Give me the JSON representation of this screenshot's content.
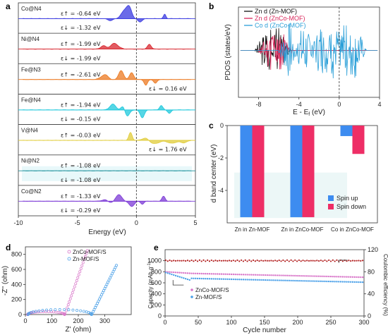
{
  "colors": {
    "Co@N4": "#3a3ae0",
    "Ni@N4": "#d8262e",
    "Fe@N3": "#ec7a22",
    "Fe@N4": "#1ec8dc",
    "V@N4": "#e0cc3a",
    "Ni@N2": "#1b8f9a",
    "Co@N2": "#7c3ad6",
    "zn_mof": "#111111",
    "znco_mof_zn": "#d9265a",
    "znco_mof_co": "#2a9fd8",
    "spin_up": "#3d8cf0",
    "spin_down": "#ee2e66",
    "znco_circle": "#d874c8",
    "zn_circle": "#4aa0e8",
    "ce_line": "#b22020"
  },
  "chart_data": [
    {
      "panel": "a",
      "type": "area",
      "xlabel": "Energy (eV)",
      "xlim": [
        -10,
        5
      ],
      "xticks": [
        "-10",
        "-5",
        "0",
        "5"
      ],
      "rows": [
        {
          "label": "Co@N4",
          "eps_up": "ε↑ = -0.64 eV",
          "eps_down": "ε↓ = -1.32 eV",
          "peaks": [
            [
              -1.0,
              0.4,
              0.8
            ],
            [
              -0.6,
              0.3,
              1.0
            ],
            [
              0.3,
              0.25,
              -0.35
            ],
            [
              2.4,
              0.15,
              0.45
            ],
            [
              -2.2,
              0.3,
              -0.2
            ]
          ]
        },
        {
          "label": "Ni@N4",
          "eps_up": "ε↑ = -1.99 eV",
          "eps_down": "ε↓ = -1.99 eV",
          "peaks": [
            [
              -1.8,
              0.45,
              0.9
            ],
            [
              -2.8,
              0.3,
              0.35
            ],
            [
              1.1,
              0.22,
              0.5
            ],
            [
              -1.7,
              0.4,
              -0.35
            ]
          ]
        },
        {
          "label": "Fe@N3",
          "eps_up": "ε↑ = -2.61 eV",
          "eps_down": "ε↓ = 0.16 eV",
          "peaks": [
            [
              -2.6,
              0.5,
              0.55
            ],
            [
              -1.3,
              0.3,
              0.9
            ],
            [
              -0.4,
              0.25,
              0.7
            ],
            [
              0.8,
              0.2,
              -0.6
            ],
            [
              1.6,
              0.2,
              -0.4
            ],
            [
              -2.2,
              0.4,
              -0.2
            ]
          ]
        },
        {
          "label": "Fe@N4",
          "eps_up": "ε↑ = -1.94 eV",
          "eps_down": "ε↓ = -0.15 eV",
          "peaks": [
            [
              -2.0,
              0.35,
              0.6
            ],
            [
              -1.1,
              0.25,
              0.5
            ],
            [
              2.1,
              0.2,
              0.45
            ],
            [
              -0.8,
              0.3,
              -0.7
            ],
            [
              0.5,
              0.25,
              -0.8
            ],
            [
              2.8,
              0.2,
              -0.35
            ]
          ]
        },
        {
          "label": "V@N4",
          "eps_up": "ε↑ = -0.03 eV",
          "eps_down": "ε↓ = 1.76 eV",
          "peaks": [
            [
              -0.5,
              0.2,
              0.8
            ],
            [
              0.8,
              0.4,
              0.3
            ],
            [
              1.5,
              0.6,
              -0.35
            ],
            [
              3.0,
              0.5,
              -0.3
            ],
            [
              4.0,
              0.4,
              -0.25
            ]
          ]
        },
        {
          "label": "Ni@N2",
          "eps_up": "ε↑ = -1.08 eV",
          "eps_down": "ε↓ = -1.08 eV",
          "peaks": [
            [
              -1.0,
              0.5,
              0.75
            ],
            [
              -2.0,
              0.4,
              0.3
            ],
            [
              -3.4,
              0.5,
              0.12
            ],
            [
              2.4,
              0.2,
              0.4
            ],
            [
              -1.0,
              0.5,
              -0.75
            ],
            [
              -2.0,
              0.4,
              -0.3
            ],
            [
              -3.4,
              0.5,
              -0.12
            ],
            [
              2.4,
              0.2,
              -0.4
            ]
          ]
        },
        {
          "label": "Co@N2",
          "eps_up": "ε↑ = -1.33 eV",
          "eps_down": "ε↓ = -0.29 eV",
          "peaks": [
            [
              -1.5,
              0.35,
              0.7
            ],
            [
              -2.6,
              0.4,
              0.2
            ],
            [
              2.3,
              0.2,
              0.5
            ],
            [
              -0.4,
              0.3,
              -0.55
            ],
            [
              0.5,
              0.2,
              -0.3
            ],
            [
              -2.2,
              0.4,
              -0.2
            ]
          ]
        }
      ]
    },
    {
      "panel": "b",
      "type": "line",
      "xlabel": "E - E",
      "xlabel_sub": "f",
      "xlabel_unit": " (eV)",
      "ylabel": "PDOS (states/eV)",
      "xlim": [
        -10,
        4
      ],
      "xticks": [
        -8,
        -4,
        0,
        4
      ],
      "series": [
        {
          "name": "Zn d (Zn-MOF)",
          "color_key": "zn_mof"
        },
        {
          "name": "Zn d (ZnCo-MOF)",
          "color_key": "znco_mof_zn"
        },
        {
          "name": "Co d (ZnCo-MOF)",
          "color_key": "znco_mof_co"
        }
      ]
    },
    {
      "panel": "c",
      "type": "bar",
      "ylabel": "d band center (eV)",
      "ylim": [
        -6,
        0
      ],
      "yticks": [
        0,
        -2,
        -4
      ],
      "categories": [
        "Zn in Zn-MOF",
        "Zn in ZnCo-MOF",
        "Co in ZnCo-MOF"
      ],
      "series": [
        {
          "name": "Spin up",
          "values": [
            -5.65,
            -5.65,
            -0.65
          ]
        },
        {
          "name": "Spin down",
          "values": [
            -5.65,
            -5.65,
            -1.75
          ]
        }
      ]
    },
    {
      "panel": "d",
      "type": "scatter",
      "xlabel": "Z' (ohm)",
      "ylabel": "-Z'' (ohm)",
      "xlim": [
        0,
        400
      ],
      "ylim": [
        0,
        900
      ],
      "xticks": [
        0,
        100,
        200,
        300
      ],
      "yticks": [
        0,
        200,
        400,
        600,
        800
      ],
      "series": [
        {
          "name": "ZnCo-MOF/S"
        },
        {
          "name": "Zn-MOF/S"
        }
      ]
    },
    {
      "panel": "e",
      "type": "scatter",
      "xlabel": "Cycle number",
      "ylabel": "Capacity (mAh g",
      "ylabel_sup": "-1",
      "ylabel_end": ")",
      "y2label": "Coulombic efficiency (%)",
      "xlim": [
        0,
        300
      ],
      "ylim": [
        0,
        1200
      ],
      "y2lim": [
        0,
        120
      ],
      "xticks": [
        0,
        50,
        100,
        150,
        200,
        250,
        300
      ],
      "yticks": [
        0,
        200,
        400,
        600,
        800,
        1000
      ],
      "y2ticks": [
        0,
        40,
        80,
        120
      ],
      "series": [
        {
          "name": "ZnCo-MOF/S",
          "start": 800,
          "end": 700
        },
        {
          "name": "Zn-MOF/S",
          "start": 790,
          "end": 610
        },
        {
          "name": "Coulombic efficiency",
          "value": 100
        }
      ]
    }
  ]
}
